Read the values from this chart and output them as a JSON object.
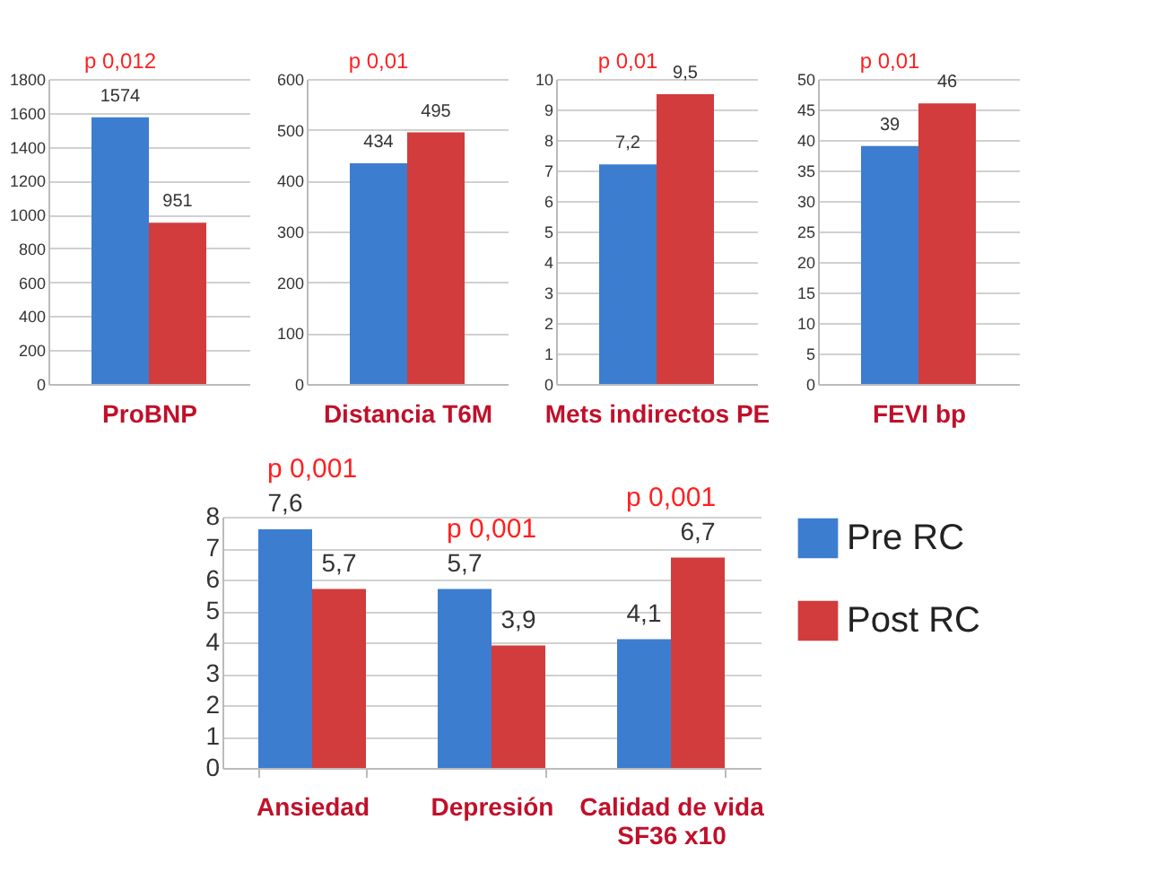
{
  "chart_data": [
    {
      "type": "bar",
      "categories": [
        "ProBNP"
      ],
      "ylim": [
        0,
        1800
      ],
      "yticks": [
        0,
        200,
        400,
        600,
        800,
        1000,
        1200,
        1400,
        1600,
        1800
      ],
      "grid": "y",
      "annotations": [
        "p 0,012"
      ],
      "series": [
        {
          "color": "#3c7dd0",
          "values": [
            1574
          ],
          "value_labels": [
            "1574"
          ]
        },
        {
          "color": "#d23c3c",
          "values": [
            951
          ],
          "value_labels": [
            "951"
          ]
        }
      ]
    },
    {
      "type": "bar",
      "categories": [
        "Distancia T6M"
      ],
      "ylim": [
        0,
        600
      ],
      "yticks": [
        0,
        100,
        200,
        300,
        400,
        500,
        600
      ],
      "grid": "y",
      "annotations": [
        "p 0,01"
      ],
      "series": [
        {
          "color": "#3c7dd0",
          "values": [
            434
          ],
          "value_labels": [
            "434"
          ]
        },
        {
          "color": "#d23c3c",
          "values": [
            495
          ],
          "value_labels": [
            "495"
          ]
        }
      ]
    },
    {
      "type": "bar",
      "categories": [
        "Mets indirectos PE"
      ],
      "ylim": [
        0,
        10
      ],
      "yticks": [
        0,
        1,
        2,
        3,
        4,
        5,
        6,
        7,
        8,
        9,
        10
      ],
      "grid": "y",
      "annotations": [
        "p 0,01"
      ],
      "series": [
        {
          "color": "#3c7dd0",
          "values": [
            7.2
          ],
          "value_labels": [
            "7,2"
          ]
        },
        {
          "color": "#d23c3c",
          "values": [
            9.5
          ],
          "value_labels": [
            "9,5"
          ]
        }
      ]
    },
    {
      "type": "bar",
      "categories": [
        "FEVI bp"
      ],
      "ylim": [
        0,
        50
      ],
      "yticks": [
        0,
        5,
        10,
        15,
        20,
        25,
        30,
        35,
        40,
        45,
        50
      ],
      "grid": "y",
      "annotations": [
        "p 0,01"
      ],
      "series": [
        {
          "color": "#3c7dd0",
          "values": [
            39
          ],
          "value_labels": [
            "39"
          ]
        },
        {
          "color": "#d23c3c",
          "values": [
            46
          ],
          "value_labels": [
            "46"
          ]
        }
      ]
    },
    {
      "type": "bar",
      "categories": [
        "Ansiedad",
        "Depresión",
        "Calidad de vida\nSF36 x10"
      ],
      "ylim": [
        0,
        8
      ],
      "yticks": [
        0,
        1,
        2,
        3,
        4,
        5,
        6,
        7,
        8
      ],
      "grid": "y",
      "legend": "right",
      "annotations": [
        "p 0,001",
        "p 0,001",
        "p 0,001"
      ],
      "series": [
        {
          "name": "Pre RC",
          "color": "#3c7dd0",
          "values": [
            7.6,
            5.7,
            4.1
          ],
          "value_labels": [
            "7,6",
            "5,7",
            "4,1"
          ]
        },
        {
          "name": "Post RC",
          "color": "#d23c3c",
          "values": [
            5.7,
            3.9,
            6.7
          ],
          "value_labels": [
            "5,7",
            "3,9",
            "6,7"
          ]
        }
      ]
    }
  ]
}
